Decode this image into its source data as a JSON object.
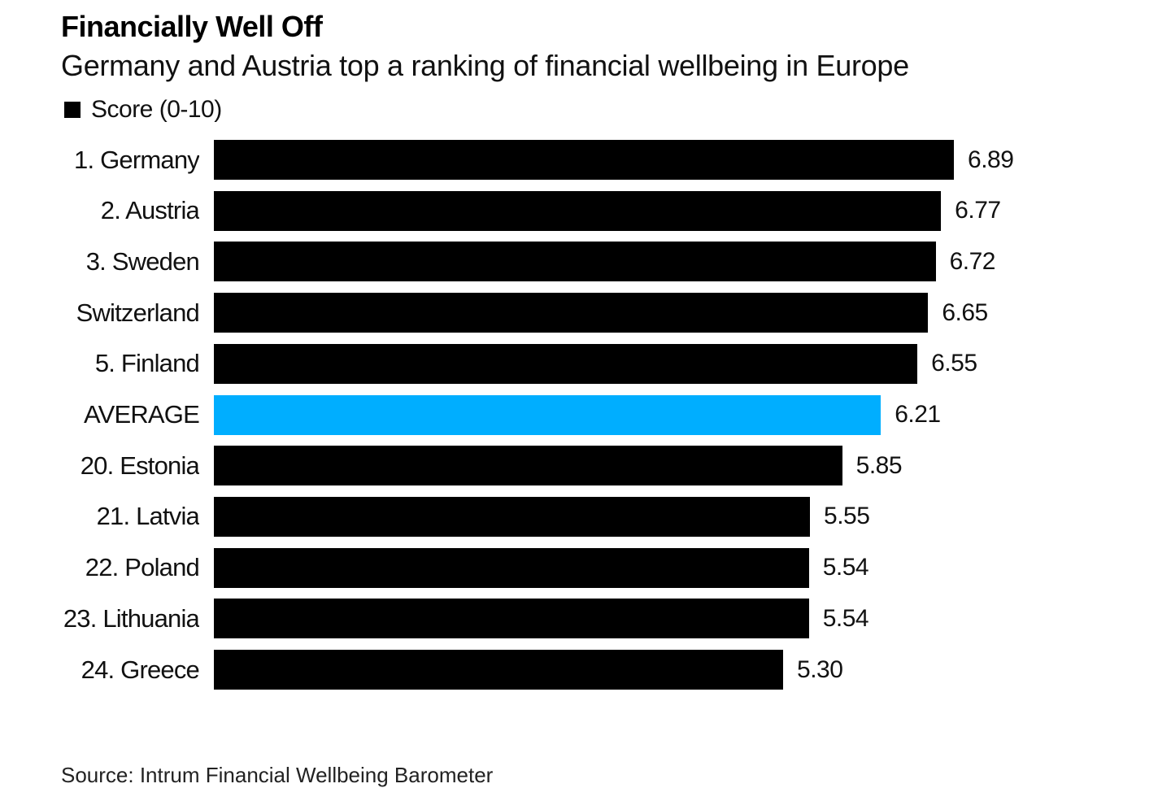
{
  "chart_data": {
    "type": "bar",
    "orientation": "horizontal",
    "title": "Financially Well Off",
    "subtitle": "Germany and Austria top a ranking of financial wellbeing in Europe",
    "legend": [
      {
        "label": "Score (0-10)",
        "color": "#000000"
      }
    ],
    "legend_placement": "top-left",
    "categories": [
      "1. Germany",
      "2. Austria",
      "3. Sweden",
      "Switzerland",
      "5. Finland",
      "AVERAGE",
      "20. Estonia",
      "21. Latvia",
      "22. Poland",
      "23. Lithuania",
      "24. Greece"
    ],
    "values": [
      6.89,
      6.77,
      6.72,
      6.65,
      6.55,
      6.21,
      5.85,
      5.55,
      5.54,
      5.54,
      5.3
    ],
    "value_labels": [
      "6.89",
      "6.77",
      "6.72",
      "6.65",
      "6.55",
      "6.21",
      "5.85",
      "5.55",
      "5.54",
      "5.54",
      "5.30"
    ],
    "highlight": {
      "category": "AVERAGE",
      "color": "#00aeff"
    },
    "bar_color": "#000000",
    "xlim": [
      0,
      10
    ],
    "xlabel": "",
    "ylabel": "",
    "grid": false,
    "source": "Source: Intrum Financial Wellbeing Barometer"
  }
}
